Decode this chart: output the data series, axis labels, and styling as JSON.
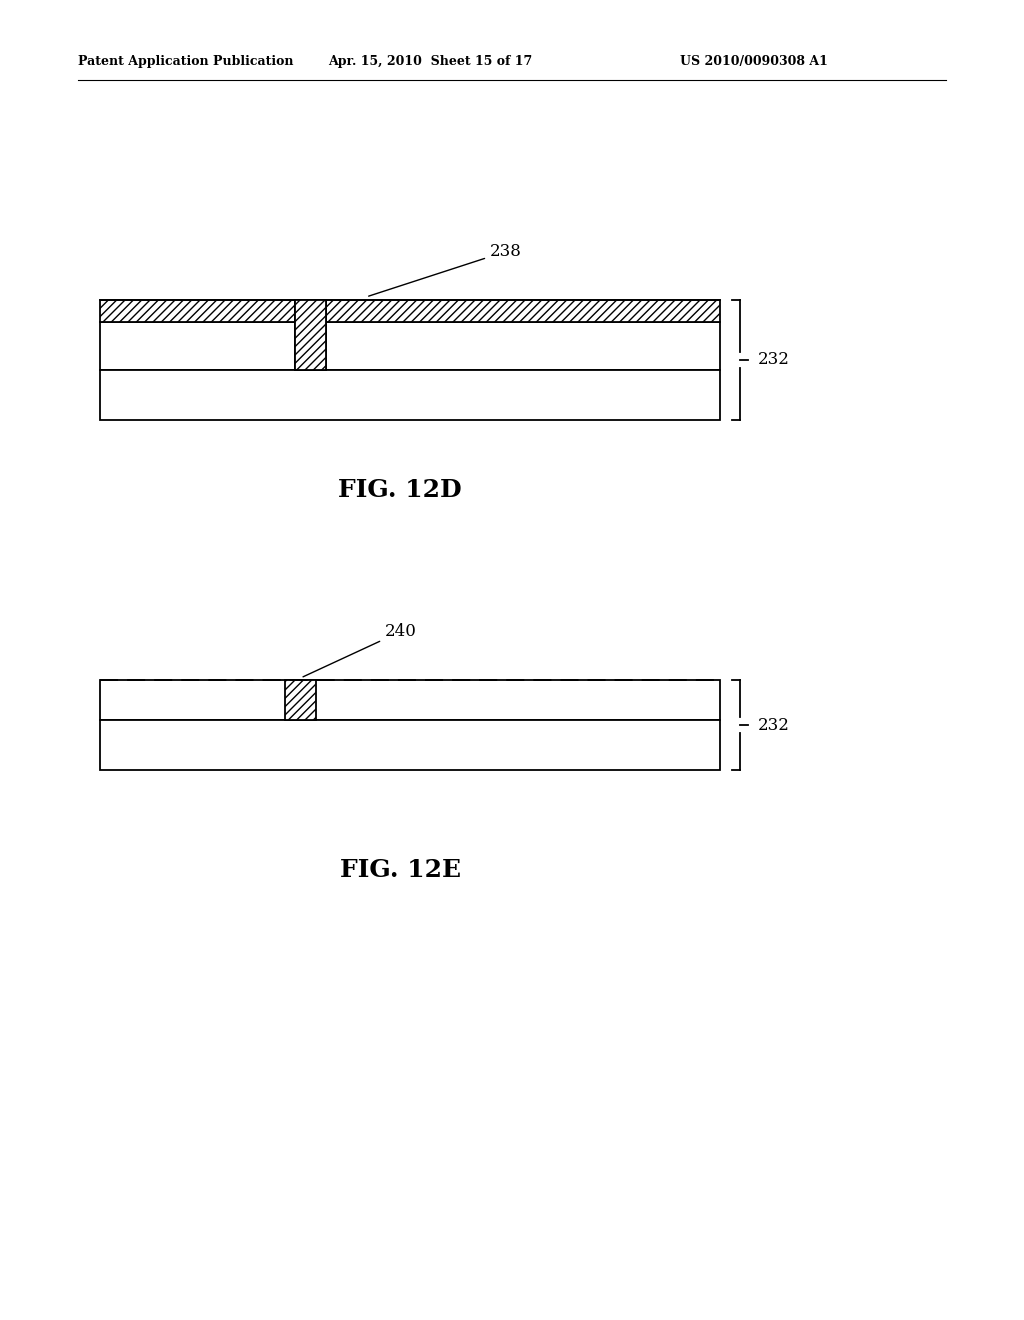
{
  "bg_color": "#ffffff",
  "header_left": "Patent Application Publication",
  "header_mid": "Apr. 15, 2010  Sheet 15 of 17",
  "header_right": "US 2010/0090308 A1",
  "fig12d_label": "FIG. 12D",
  "fig12e_label": "FIG. 12E",
  "label_238": "238",
  "label_240": "240",
  "label_232a": "232",
  "label_232b": "232",
  "lw": 1.3
}
